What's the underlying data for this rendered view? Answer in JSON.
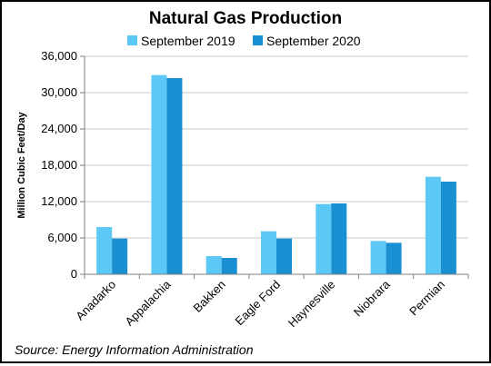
{
  "chart_data": {
    "type": "bar",
    "title": "Natural Gas Production",
    "ylabel": "Million Cubic Feet/Day",
    "xlabel": "",
    "categories": [
      "Anadarko",
      "Appalachia",
      "Bakken",
      "Eagle Ford",
      "Haynesville",
      "Niobrara",
      "Permian"
    ],
    "series": [
      {
        "name": "September 2019",
        "color": "#5bc8f5",
        "values": [
          7800,
          32900,
          3000,
          7100,
          11600,
          5500,
          16100
        ]
      },
      {
        "name": "September 2020",
        "color": "#1a8fd1",
        "values": [
          5900,
          32400,
          2700,
          5900,
          11700,
          5200,
          15300
        ]
      }
    ],
    "ylim": [
      0,
      36000
    ],
    "yticks": [
      0,
      6000,
      12000,
      18000,
      24000,
      30000,
      36000
    ],
    "ytick_labels": [
      "0",
      "6,000",
      "12,000",
      "18,000",
      "24,000",
      "30,000",
      "36,000"
    ],
    "grid": true,
    "legend": "top-center"
  },
  "source": "Source: Energy Information Administration"
}
